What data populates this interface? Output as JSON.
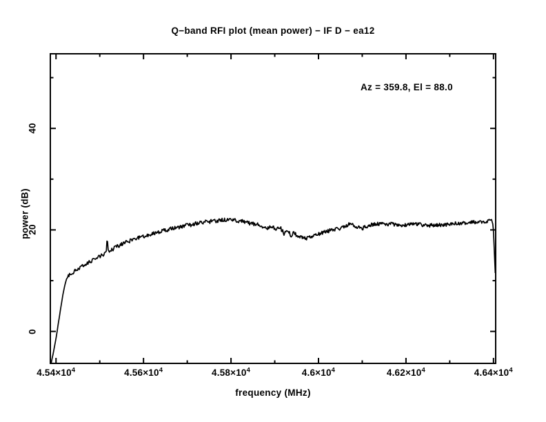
{
  "chart_data": {
    "type": "line",
    "title": "Q−band RFI plot (mean power) − IF D − ea12",
    "annotation": "Az = 359.8, El = 88.0",
    "xlabel": "frequency (MHz)",
    "ylabel": "power (dB)",
    "xlim": [
      45387,
      46405
    ],
    "ylim": [
      -6.3,
      54.7
    ],
    "grid": false,
    "background": "#ffffff",
    "line_color": "#000000",
    "axis_color": "#000000",
    "x_major_ticks": [
      45400,
      45600,
      45800,
      46000,
      46200,
      46400
    ],
    "x_minor_ticks": [
      45500,
      45700,
      45900,
      46100,
      46300
    ],
    "x_tick_labels": [
      {
        "base": "4.54×10",
        "sup": "4"
      },
      {
        "base": "4.56×10",
        "sup": "4"
      },
      {
        "base": "4.58×10",
        "sup": "4"
      },
      {
        "base": "4.6×10",
        "sup": "4"
      },
      {
        "base": "4.62×10",
        "sup": "4"
      },
      {
        "base": "4.64×10",
        "sup": "4"
      }
    ],
    "y_major_ticks": [
      0,
      20,
      40
    ],
    "y_minor_ticks": [
      10,
      30,
      50
    ],
    "y_tick_labels": [
      "0",
      "20",
      "40"
    ],
    "series": [
      {
        "name": "mean power",
        "points": [
          [
            45389,
            -6.2
          ],
          [
            45393,
            -4.6
          ],
          [
            45397,
            -2.8
          ],
          [
            45401,
            -0.8
          ],
          [
            45405,
            1.4
          ],
          [
            45409,
            3.6
          ],
          [
            45413,
            5.8
          ],
          [
            45417,
            7.8
          ],
          [
            45421,
            9.4
          ],
          [
            45424,
            10.3
          ],
          [
            45428,
            10.9
          ],
          [
            45436,
            11.5
          ],
          [
            45446,
            12.1
          ],
          [
            45456,
            12.6
          ],
          [
            45466,
            13.1
          ],
          [
            45476,
            13.6
          ],
          [
            45486,
            14.1
          ],
          [
            45496,
            14.6
          ],
          [
            45506,
            15.1
          ],
          [
            45513,
            15.4
          ],
          [
            45515,
            15.5
          ],
          [
            45517,
            18.9
          ],
          [
            45519,
            15.7
          ],
          [
            45528,
            16.1
          ],
          [
            45538,
            16.7
          ],
          [
            45548,
            17.1
          ],
          [
            45558,
            17.5
          ],
          [
            45568,
            17.8
          ],
          [
            45578,
            18.1
          ],
          [
            45588,
            18.4
          ],
          [
            45598,
            18.6
          ],
          [
            45608,
            18.9
          ],
          [
            45618,
            19.1
          ],
          [
            45628,
            19.4
          ],
          [
            45638,
            19.6
          ],
          [
            45648,
            19.9
          ],
          [
            45658,
            20.1
          ],
          [
            45668,
            20.3
          ],
          [
            45678,
            20.5
          ],
          [
            45688,
            20.7
          ],
          [
            45698,
            20.9
          ],
          [
            45708,
            21.0
          ],
          [
            45718,
            21.2
          ],
          [
            45728,
            21.4
          ],
          [
            45738,
            21.5
          ],
          [
            45748,
            21.6
          ],
          [
            45758,
            21.7
          ],
          [
            45768,
            21.8
          ],
          [
            45778,
            21.9
          ],
          [
            45788,
            22.0
          ],
          [
            45798,
            22.0
          ],
          [
            45808,
            21.9
          ],
          [
            45818,
            21.8
          ],
          [
            45828,
            21.6
          ],
          [
            45838,
            21.4
          ],
          [
            45848,
            21.2
          ],
          [
            45858,
            21.1
          ],
          [
            45870,
            20.8
          ],
          [
            45882,
            20.4
          ],
          [
            45894,
            20.7
          ],
          [
            45902,
            20.0
          ],
          [
            45913,
            20.4
          ],
          [
            45921,
            19.3
          ],
          [
            45929,
            20.1
          ],
          [
            45937,
            18.8
          ],
          [
            45945,
            19.5
          ],
          [
            45953,
            18.4
          ],
          [
            45961,
            18.6
          ],
          [
            45973,
            18.4
          ],
          [
            45989,
            18.8
          ],
          [
            46005,
            19.3
          ],
          [
            46020,
            19.7
          ],
          [
            46036,
            20.1
          ],
          [
            46052,
            20.4
          ],
          [
            46064,
            20.9
          ],
          [
            46072,
            21.2
          ],
          [
            46080,
            20.9
          ],
          [
            46090,
            20.5
          ],
          [
            46100,
            20.3
          ],
          [
            46110,
            20.7
          ],
          [
            46120,
            21.0
          ],
          [
            46130,
            21.2
          ],
          [
            46142,
            21.1
          ],
          [
            46154,
            21.1
          ],
          [
            46166,
            21.2
          ],
          [
            46178,
            21.0
          ],
          [
            46190,
            20.9
          ],
          [
            46202,
            21.0
          ],
          [
            46214,
            21.1
          ],
          [
            46226,
            21.2
          ],
          [
            46238,
            21.0
          ],
          [
            46250,
            20.9
          ],
          [
            46262,
            20.9
          ],
          [
            46274,
            21.0
          ],
          [
            46286,
            21.0
          ],
          [
            46298,
            21.1
          ],
          [
            46310,
            21.2
          ],
          [
            46322,
            21.3
          ],
          [
            46334,
            21.4
          ],
          [
            46346,
            21.6
          ],
          [
            46358,
            21.5
          ],
          [
            46370,
            21.5
          ],
          [
            46380,
            21.7
          ],
          [
            46388,
            21.8
          ],
          [
            46394,
            21.9
          ],
          [
            46398,
            21.5
          ],
          [
            46400,
            19.8
          ],
          [
            46402,
            15.5
          ],
          [
            46404,
            11.5
          ],
          [
            46405,
            10.4
          ]
        ]
      }
    ]
  }
}
